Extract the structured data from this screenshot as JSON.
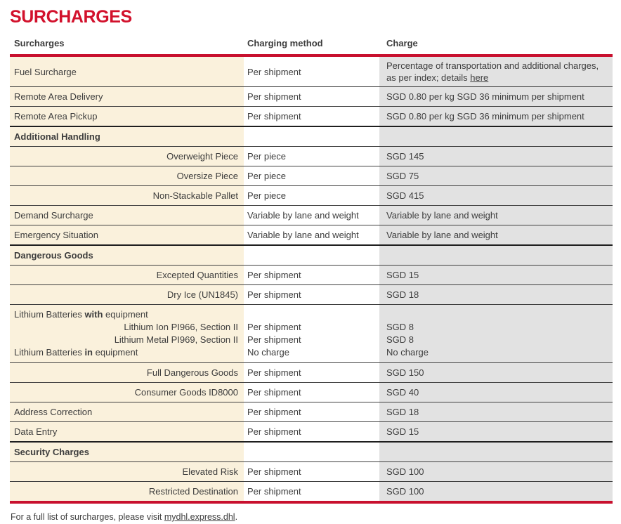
{
  "page_title": "SURCHARGES",
  "colors": {
    "brand_red": "#d2112c",
    "rule_red": "#c8102e",
    "cream": "#faf1dc",
    "gray": "#e2e2e2",
    "text": "#3d3d3d"
  },
  "table": {
    "headers": [
      "Surcharges",
      "Charging method",
      "Charge"
    ],
    "rows": [
      {
        "type": "item",
        "label": "Fuel Surcharge",
        "method": "Per shipment",
        "charge_text": "Percentage of transportation and additional charges, as per index; details ",
        "charge_link": "here"
      },
      {
        "type": "item",
        "label": "Remote Area Delivery",
        "method": "Per shipment",
        "charge": "SGD 0.80 per kg SGD 36 minimum per shipment"
      },
      {
        "type": "item",
        "label": "Remote Area Pickup",
        "method": "Per shipment",
        "charge": "SGD 0.80 per kg SGD 36 minimum per shipment"
      },
      {
        "type": "section",
        "label": "Additional Handling"
      },
      {
        "type": "sub",
        "label": "Overweight Piece",
        "method": "Per piece",
        "charge": "SGD 145"
      },
      {
        "type": "sub",
        "label": "Oversize Piece",
        "method": "Per piece",
        "charge": "SGD 75"
      },
      {
        "type": "sub",
        "label": "Non-Stackable Pallet",
        "method": "Per piece",
        "charge": "SGD 415"
      },
      {
        "type": "item",
        "label": "Demand Surcharge",
        "method": "Variable by lane and weight",
        "charge": "Variable by lane and weight"
      },
      {
        "type": "item",
        "label": "Emergency Situation",
        "method": "Variable by lane and weight",
        "charge": "Variable by lane and weight"
      },
      {
        "type": "section",
        "label": "Dangerous Goods"
      },
      {
        "type": "sub",
        "label": "Excepted Quantities",
        "method": "Per shipment",
        "charge": "SGD 15"
      },
      {
        "type": "sub",
        "label": "Dry Ice (UN1845)",
        "method": "Per shipment",
        "charge": "SGD 18"
      },
      {
        "type": "group",
        "lines": [
          {
            "label_prefix": "Lithium Batteries ",
            "label_bold": "with",
            "label_suffix": " equipment",
            "align": "left",
            "method": "",
            "charge": ""
          },
          {
            "label": "Lithium Ion PI966, Section II",
            "align": "right",
            "method": "Per shipment",
            "charge": "SGD 8"
          },
          {
            "label": "Lithium Metal PI969, Section II",
            "align": "right",
            "method": "Per shipment",
            "charge": "SGD 8"
          },
          {
            "label_prefix": "Lithium Batteries ",
            "label_bold": "in",
            "label_suffix": " equipment",
            "align": "left",
            "method": "No charge",
            "charge": "No charge"
          }
        ]
      },
      {
        "type": "sub",
        "label": "Full Dangerous Goods",
        "method": "Per shipment",
        "charge": "SGD 150"
      },
      {
        "type": "sub",
        "label": "Consumer Goods ID8000",
        "method": "Per shipment",
        "charge": "SGD 40"
      },
      {
        "type": "item",
        "label": "Address Correction",
        "method": "Per shipment",
        "charge": "SGD 18"
      },
      {
        "type": "item",
        "label": "Data Entry",
        "method": "Per shipment",
        "charge": "SGD 15"
      },
      {
        "type": "section",
        "label": "Security Charges"
      },
      {
        "type": "sub",
        "label": "Elevated Risk",
        "method": "Per shipment",
        "charge": "SGD 100"
      },
      {
        "type": "sub",
        "label": "Restricted Destination",
        "method": "Per shipment",
        "charge": "SGD 100"
      }
    ]
  },
  "footer": {
    "text_before_link": "For a full list of surcharges, please visit ",
    "link": "mydhl.express.dhl",
    "text_after_link": "."
  }
}
